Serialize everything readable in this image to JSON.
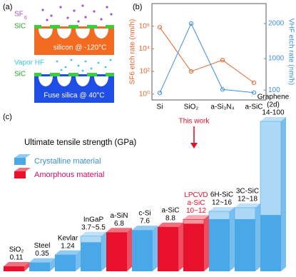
{
  "panel_a": {
    "label": "(a)",
    "top": {
      "gas": "SF",
      "gas_subscript": "6",
      "film": "SiC",
      "substrate": "silicon @ -120°C"
    },
    "bottom": {
      "gas": "Vapor HF",
      "film": "SiC",
      "substrate": "Fuse silica @ 40°C"
    }
  },
  "chart_data": [
    {
      "type": "line",
      "panel_label": "(b)",
      "categories": [
        "Si",
        "SiO₂",
        "a-Si₃N₄",
        "a-SiC"
      ],
      "ylabel": "SF6 etch rate (nm/h)",
      "y2label": "VHF etch rate (nm/h)",
      "log_y": true,
      "ylim": [
        0.3,
        100000000
      ],
      "yticks": [
        {
          "value": 1,
          "label": "10⁰"
        },
        {
          "value": 100,
          "label": "10²"
        },
        {
          "value": 10000,
          "label": "10⁴"
        },
        {
          "value": 1000000,
          "label": "10⁶"
        }
      ],
      "y2lim": [
        -180,
        2570
      ],
      "y2ticks": [
        100,
        1000,
        2000
      ],
      "series": [
        {
          "color": "#e8652c",
          "values": [
            800000,
            100,
            1000,
            10
          ]
        },
        {
          "color": "#3d8fe0",
          "values": [
            20,
            2000,
            120,
            30
          ],
          "axis": "y2"
        }
      ]
    },
    {
      "type": "bar3d",
      "panel_label": "(c)",
      "title": "Ultimate tensile strength (GPa)",
      "annotation": "This work",
      "scale": "sqrt",
      "categories": [
        "SiO₂",
        "Steel",
        "Kevlar",
        "InGaP",
        "a-SiN",
        "c-Si",
        "a-SiC",
        [
          "LPCVD",
          "a-SiC"
        ],
        "6H-SiC",
        "3C-SiC",
        [
          "Graphene",
          "(2d)"
        ]
      ],
      "values": [
        0.11,
        0.35,
        1.24,
        3.7,
        6.8,
        7.6,
        8.8,
        10,
        12,
        12,
        14
      ],
      "high": [
        null,
        null,
        null,
        5.5,
        null,
        null,
        null,
        12,
        16,
        18,
        100
      ],
      "value_labels": [
        "0.11",
        "0.35",
        "1.24",
        "3.7~5.5",
        "6.8",
        "7.6",
        "8.8",
        "10~12",
        "12~16",
        "12~18",
        "14-100"
      ],
      "legend": [
        {
          "name": "Crystalline material",
          "color": "#4aa8e8"
        },
        {
          "name": "Amorphous material",
          "color": "#e8102a"
        }
      ],
      "kinds": [
        1,
        0,
        0,
        0,
        1,
        0,
        1,
        1,
        0,
        0,
        0
      ]
    }
  ]
}
